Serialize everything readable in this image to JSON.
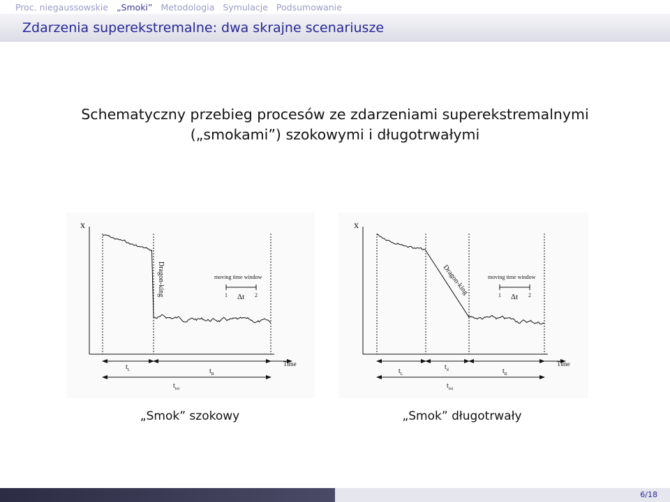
{
  "nav": {
    "items": [
      "Proc. niegaussowskie",
      "„Smoki”",
      "Metodologia",
      "Symulacje",
      "Podsumowanie"
    ]
  },
  "header": {
    "title": "Zdarzenia superekstremalne: dwa skrajne scenariusze"
  },
  "body": {
    "lines": [
      "Schematyczny przebieg procesów ze zdarzeniami superekstremalnymi",
      "(„smokami”) szokowymi i długotrwałymi"
    ]
  },
  "figures": [
    {
      "axis_label": "x",
      "dragon_king": "Dragon-king",
      "window": {
        "title": "moving time window",
        "start": "1",
        "delta": "Δt",
        "end": "2"
      },
      "time_label": "Time",
      "intervals": [
        {
          "symbol": "t",
          "sub": "L"
        },
        {
          "symbol": "t",
          "sub": "R"
        }
      ],
      "total": {
        "symbol": "t",
        "sub": "tot"
      },
      "caption": "„Smok” szokowy"
    },
    {
      "axis_label": "x",
      "dragon_king": "Dragon-king",
      "window": {
        "title": "moving time window",
        "start": "1",
        "delta": "Δt",
        "end": "2"
      },
      "time_label": "Time",
      "intervals": [
        {
          "symbol": "t",
          "sub": "L"
        },
        {
          "symbol": "t",
          "sub": "d"
        },
        {
          "symbol": "t",
          "sub": "R"
        }
      ],
      "total": {
        "symbol": "t",
        "sub": "tot"
      },
      "caption": "„Smok” długotrwały"
    }
  ],
  "footer": {
    "page": "6/18"
  }
}
